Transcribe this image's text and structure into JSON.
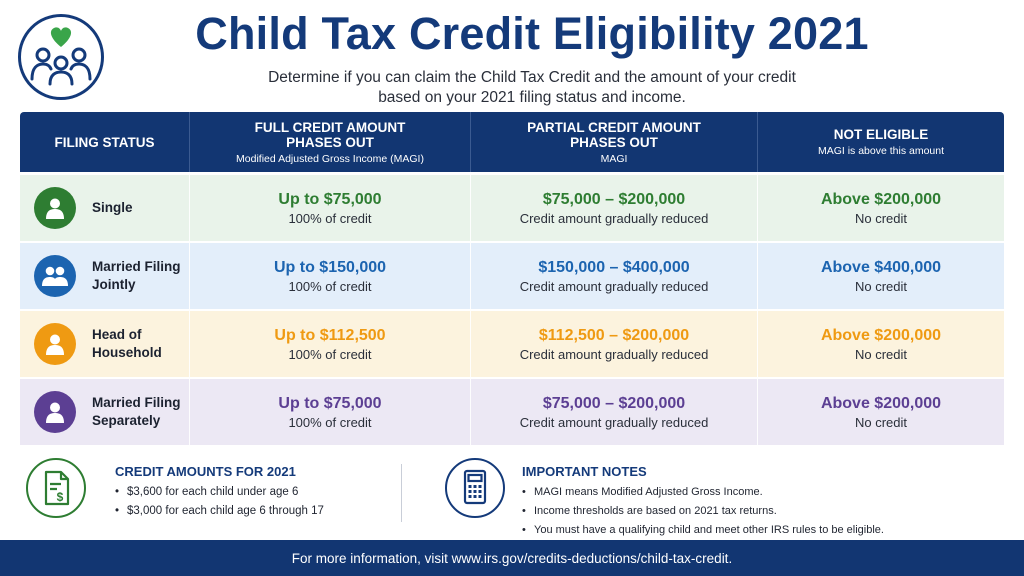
{
  "header": {
    "logo_icon": "family-heart-icon",
    "title": "Child Tax Credit Eligibility 2021",
    "subtitle_line1": "Determine if you can claim the Child Tax Credit and the amount of your credit",
    "subtitle_line2": "based on your 2021 filing status and income."
  },
  "table": {
    "columns": [
      {
        "heading": "FILING STATUS",
        "sub": ""
      },
      {
        "heading": "FULL CREDIT AMOUNT\nPHASES OUT",
        "sub": "Modified Adjusted Gross Income (MAGI)"
      },
      {
        "heading": "PARTIAL CREDIT AMOUNT\nPHASES OUT",
        "sub": "MAGI"
      },
      {
        "heading": "NOT ELIGIBLE",
        "sub": "MAGI is above this amount"
      }
    ],
    "rows": [
      {
        "status": "Single",
        "icon": "person-icon",
        "color": "#2e7d32",
        "bg": "#e9f3ea",
        "full": "Up to $75,000",
        "full_note": "100% of credit",
        "partial": "$75,000 – $200,000",
        "partial_note": "Credit amount gradually reduced",
        "none": "Above $200,000",
        "none_note": "No credit"
      },
      {
        "status": "Married Filing\nJointly",
        "icon": "couple-icon",
        "color": "#1c64b0",
        "bg": "#e3eefa",
        "full": "Up to $150,000",
        "full_note": "100% of credit",
        "partial": "$150,000 – $400,000",
        "partial_note": "Credit amount gradually reduced",
        "none": "Above $400,000",
        "none_note": "No credit"
      },
      {
        "status": "Head of\nHousehold",
        "icon": "person-icon",
        "color": "#ef9a12",
        "bg": "#fcf3de",
        "full": "Up to $112,500",
        "full_note": "100% of credit",
        "partial": "$112,500 – $200,000",
        "partial_note": "Credit amount gradually reduced",
        "none": "Above $200,000",
        "none_note": "No credit"
      },
      {
        "status": "Married Filing\nSeparately",
        "icon": "person-icon",
        "color": "#5c3f93",
        "bg": "#ece8f4",
        "full": "Up to $75,000",
        "full_note": "100% of credit",
        "partial": "$75,000 – $200,000",
        "partial_note": "Credit amount gradually reduced",
        "none": "Above $200,000",
        "none_note": "No credit"
      }
    ]
  },
  "credit_amounts": {
    "icon": "document-dollar-icon",
    "heading": "CREDIT AMOUNTS FOR 2021",
    "items": [
      "$3,600 for each child under age 6",
      "$3,000 for each child age 6 through 17"
    ]
  },
  "notes": {
    "icon": "calculator-icon",
    "heading": "IMPORTANT NOTES",
    "items": [
      "MAGI means Modified Adjusted Gross Income.",
      "Income thresholds are based on 2021 tax returns.",
      "You must have a qualifying child and meet other IRS rules to be eligible."
    ]
  },
  "footer": {
    "text": "For more information, visit www.irs.gov/credits-deductions/child-tax-credit."
  },
  "colors": {
    "navy": "#123672",
    "title": "#143a7a",
    "green": "#2e7d32"
  }
}
